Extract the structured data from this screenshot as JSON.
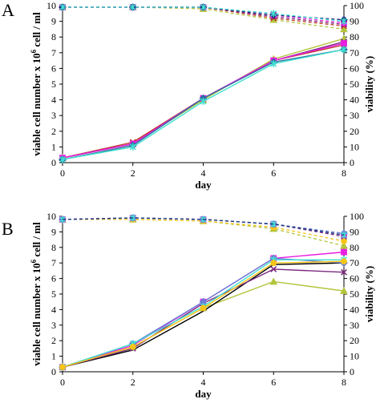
{
  "chart_data": [
    {
      "type": "line",
      "panel_label": "A",
      "xlabel": "day",
      "ylabel_left": "viable cell number x 10^6 cell / ml",
      "ylabel_right": "viability (%)",
      "x": [
        0,
        2,
        4,
        6,
        8
      ],
      "xlim": [
        0,
        8
      ],
      "xticks": [
        "0",
        "2",
        "4",
        "6",
        "8"
      ],
      "ylim_left": [
        0,
        10
      ],
      "yticks_left": [
        "0",
        "1",
        "2",
        "3",
        "4",
        "5",
        "6",
        "7",
        "8",
        "9",
        "10"
      ],
      "ylim_right": [
        0,
        100
      ],
      "yticks_right": [
        "0",
        "10",
        "20",
        "30",
        "40",
        "50",
        "60",
        "70",
        "80",
        "90",
        "100"
      ],
      "grid": false,
      "cell_density_series": [
        {
          "color": "#b4c43c",
          "marker": "triangle",
          "values": [
            0.3,
            1.2,
            4.0,
            6.6,
            7.9
          ]
        },
        {
          "color": "#c0392b",
          "marker": "x",
          "values": [
            0.3,
            1.3,
            4.1,
            6.5,
            7.5
          ]
        },
        {
          "color": "#7b2a7f",
          "marker": "x",
          "values": [
            0.3,
            1.2,
            4.1,
            6.5,
            7.7
          ]
        },
        {
          "color": "#e91ee0",
          "marker": "square",
          "values": [
            0.3,
            1.2,
            4.1,
            6.5,
            7.6
          ]
        },
        {
          "color": "#2f6da3",
          "marker": "diamond",
          "values": [
            0.2,
            1.1,
            4.1,
            6.4,
            7.2
          ]
        },
        {
          "color": "#40e0d0",
          "marker": "star",
          "values": [
            0.2,
            1.0,
            3.9,
            6.3,
            7.2
          ]
        }
      ],
      "viability_series": [
        {
          "color": "#b4c43c",
          "marker": "triangle",
          "values": [
            99,
            99,
            98,
            91,
            85
          ]
        },
        {
          "color": "#c0392b",
          "marker": "x",
          "values": [
            99,
            99,
            99,
            92,
            87
          ]
        },
        {
          "color": "#7b2a7f",
          "marker": "x",
          "values": [
            99,
            99,
            99,
            93,
            88
          ]
        },
        {
          "color": "#e91ee0",
          "marker": "square",
          "values": [
            99,
            99,
            99,
            94,
            89
          ]
        },
        {
          "color": "#1f2a7a",
          "marker": "diamond",
          "values": [
            99,
            99,
            99,
            94,
            91
          ]
        },
        {
          "color": "#40e0d0",
          "marker": "star",
          "values": [
            99,
            99,
            99,
            95,
            90
          ]
        }
      ]
    },
    {
      "type": "line",
      "panel_label": "B",
      "xlabel": "day",
      "ylabel_left": "viable cell number x 10^6 cell / ml",
      "ylabel_right": "viability (%)",
      "x": [
        0,
        2,
        4,
        6,
        8
      ],
      "xlim": [
        0,
        8
      ],
      "xticks": [
        "0",
        "2",
        "4",
        "6",
        "8"
      ],
      "ylim_left": [
        0,
        10
      ],
      "yticks_left": [
        "0",
        "1",
        "2",
        "3",
        "4",
        "5",
        "6",
        "7",
        "8",
        "9",
        "10"
      ],
      "ylim_right": [
        0,
        100
      ],
      "yticks_right": [
        "0",
        "10",
        "20",
        "30",
        "40",
        "50",
        "60",
        "70",
        "80",
        "90",
        "100"
      ],
      "grid": false,
      "cell_density_series": [
        {
          "color": "#b4c43c",
          "marker": "triangle",
          "values": [
            0.3,
            1.6,
            4.1,
            5.8,
            5.2
          ]
        },
        {
          "color": "#000000",
          "marker": "none",
          "values": [
            0.3,
            1.4,
            3.9,
            6.9,
            7.0
          ]
        },
        {
          "color": "#7b2a7f",
          "marker": "x",
          "values": [
            0.3,
            1.5,
            4.4,
            6.6,
            6.4
          ]
        },
        {
          "color": "#e91ee0",
          "marker": "square",
          "values": [
            0.3,
            1.7,
            4.5,
            7.3,
            7.7
          ]
        },
        {
          "color": "#6b7fd6",
          "marker": "diamond",
          "values": [
            0.3,
            1.8,
            4.5,
            7.3,
            7.0
          ]
        },
        {
          "color": "#40e0d0",
          "marker": "star",
          "values": [
            0.3,
            1.8,
            4.2,
            7.2,
            7.2
          ]
        },
        {
          "color": "#f5c518",
          "marker": "circle",
          "values": [
            0.3,
            1.6,
            4.1,
            7.0,
            7.1
          ]
        }
      ],
      "viability_series": [
        {
          "color": "#b4c43c",
          "marker": "triangle",
          "values": [
            98,
            98,
            97,
            92,
            81
          ]
        },
        {
          "color": "#f5c518",
          "marker": "circle",
          "values": [
            98,
            98,
            97,
            93,
            84
          ]
        },
        {
          "color": "#7b2a7f",
          "marker": "x",
          "values": [
            98,
            99,
            98,
            95,
            87
          ]
        },
        {
          "color": "#e91ee0",
          "marker": "square",
          "values": [
            98,
            99,
            98,
            95,
            88
          ]
        },
        {
          "color": "#6b7fd6",
          "marker": "diamond",
          "values": [
            98,
            99,
            98,
            95,
            89
          ]
        },
        {
          "color": "#40e0d0",
          "marker": "star",
          "values": [
            98,
            99,
            98,
            95,
            88
          ]
        },
        {
          "color": "#1f2a7a",
          "marker": "none",
          "values": [
            98,
            99,
            98,
            95,
            88
          ]
        }
      ]
    }
  ]
}
